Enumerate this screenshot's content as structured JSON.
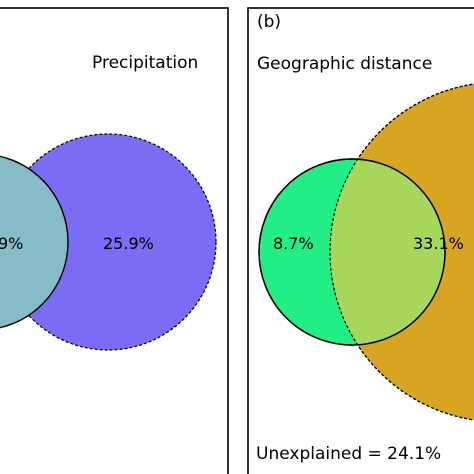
{
  "panel_a": {
    "label_precipitation": "Precipitation",
    "value_overlap_partial": "9%",
    "value_precipitation_only": "25.9%",
    "colors": {
      "precipitation_circle": "#7b6cf5",
      "overlap_region": "#86bcc8"
    }
  },
  "panel_b": {
    "panel_label": "(b)",
    "label_geographic": "Geographic distance",
    "value_left_only": "8.7%",
    "value_overlap": "33.1%",
    "unexplained": "Unexplained = 24.1%",
    "colors": {
      "green_circle": "#21ee84",
      "orange_circle": "#d9a41f",
      "overlap_region": "#a6d65a"
    }
  }
}
